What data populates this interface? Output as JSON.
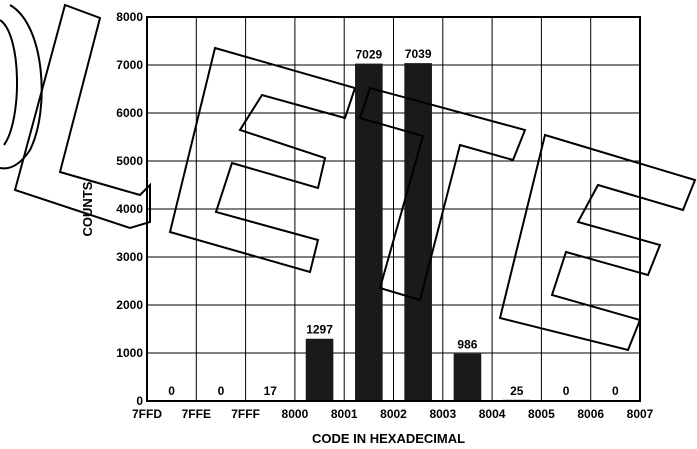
{
  "chart_data": {
    "type": "bar",
    "title": "",
    "xlabel": "CODE IN HEXADECIMAL",
    "ylabel": "COUNTS",
    "ylim": [
      0,
      8000
    ],
    "yticks": [
      0,
      1000,
      2000,
      3000,
      4000,
      5000,
      6000,
      7000,
      8000
    ],
    "xticks": [
      "7FFD",
      "7FFE",
      "7FFF",
      "8000",
      "8001",
      "8002",
      "8003",
      "8004",
      "8005",
      "8006",
      "8007"
    ],
    "categories": [
      "7FFD–7FFE",
      "7FFE–7FFF",
      "7FFF–8000",
      "8000–8001",
      "8001–8002",
      "8002–8003",
      "8003–8004",
      "8004–8005",
      "8005–8006",
      "8006–8007"
    ],
    "values": [
      0,
      0,
      17,
      1297,
      7029,
      7039,
      986,
      25,
      0,
      0
    ],
    "data_labels": [
      "0",
      "0",
      "17",
      "1297",
      "7029",
      "7039",
      "986",
      "25",
      "0",
      "0"
    ],
    "grid": true,
    "legend": "none",
    "bar_color": "#1a1a1a",
    "overlay_watermark": "OBSOLETE"
  }
}
